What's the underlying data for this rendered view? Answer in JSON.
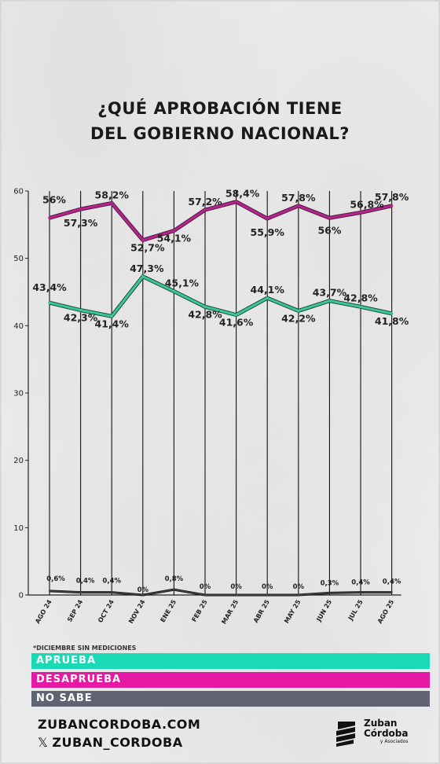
{
  "title_line1": "¿QUÉ APROBACIÓN TIENE",
  "title_line2": "DEL GOBIERNO NACIONAL?",
  "note": "*DICIEMBRE SIN MEDICIONES",
  "colors": {
    "aprueba": "#1bd9b4",
    "desaprueba": "#e619a4",
    "nosabe": "#606472",
    "line_aprueba": "#3cc79a",
    "line_desaprueba": "#b8238d"
  },
  "legend": [
    {
      "label": "APRUEBA",
      "color": "#1bd9b4"
    },
    {
      "label": "DESAPRUEBA",
      "color": "#e619a4"
    },
    {
      "label": "NO SABE",
      "color": "#606472"
    }
  ],
  "footer": {
    "website": "ZUBANCORDOBA.COM",
    "x_icon": "𝕏",
    "handle": "ZUBAN_CORDOBA"
  },
  "logo": {
    "line1": "Zuban",
    "line2": "Córdoba",
    "line3": "y Asociados",
    "icon": "zuban-cordoba-logo-icon"
  },
  "chart_data": {
    "type": "line",
    "categories": [
      "AGO 24",
      "SEP 24",
      "OCT 24",
      "NOV 24",
      "ENE 25",
      "FEB 25",
      "MAR 25",
      "ABR 25",
      "MAY 25",
      "JUN 25",
      "JUL 25",
      "AGO 25"
    ],
    "ylim": [
      0,
      60
    ],
    "yticks": [
      "0",
      "10",
      "20",
      "30",
      "40",
      "50",
      "60"
    ],
    "grid": false,
    "series": [
      {
        "name": "DESAPRUEBA",
        "values": [
          56,
          57.3,
          58.2,
          52.7,
          54.1,
          57.2,
          58.4,
          55.9,
          57.8,
          56,
          56.8,
          57.8
        ],
        "labels": [
          "56%",
          "57,3%",
          "58,2%",
          "52,7%",
          "54,1%",
          "57,2%",
          "58,4%",
          "55,9%",
          "57,8%",
          "56%",
          "56,8%",
          "57,8%"
        ]
      },
      {
        "name": "APRUEBA",
        "values": [
          43.4,
          42.3,
          41.4,
          47.3,
          45.1,
          42.8,
          41.6,
          44.1,
          42.2,
          43.7,
          42.8,
          41.8
        ],
        "labels": [
          "43,4%",
          "42,3%",
          "41,4%",
          "47,3%",
          "45,1%",
          "42,8%",
          "41,6%",
          "44,1%",
          "42,2%",
          "43,7%",
          "42,8%",
          "41,8%"
        ]
      },
      {
        "name": "NO SABE",
        "values": [
          0.6,
          0.4,
          0.4,
          0,
          0.8,
          0,
          0,
          0,
          0,
          0.3,
          0.4,
          0.4
        ],
        "labels": [
          "0,6%",
          "0,4%",
          "0,4%",
          "0%",
          "0,8%",
          "0%",
          "0%",
          "0%",
          "0%",
          "0,3%",
          "0,4%",
          "0,4%"
        ]
      }
    ]
  }
}
